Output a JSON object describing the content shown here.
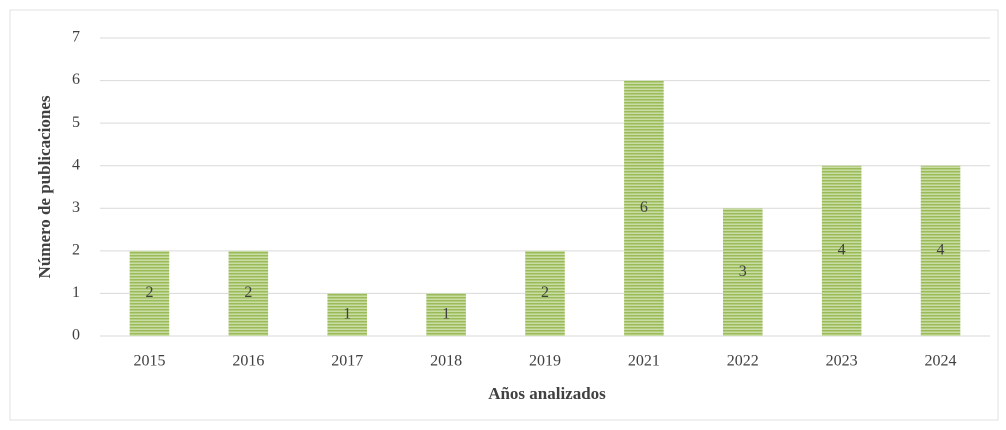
{
  "chart_data": {
    "type": "bar",
    "x_label": "Años analizados",
    "y_label": "Número de publicaciones",
    "categories": [
      "2015",
      "2016",
      "2017",
      "2018",
      "2019",
      "2021",
      "2022",
      "2023",
      "2024"
    ],
    "values": [
      2,
      2,
      1,
      1,
      2,
      6,
      3,
      4,
      4
    ],
    "color": "#9bbb59",
    "ylim": [
      0,
      7
    ],
    "yticks": [
      0,
      1,
      2,
      3,
      4,
      5,
      6,
      7
    ],
    "grid": true
  }
}
